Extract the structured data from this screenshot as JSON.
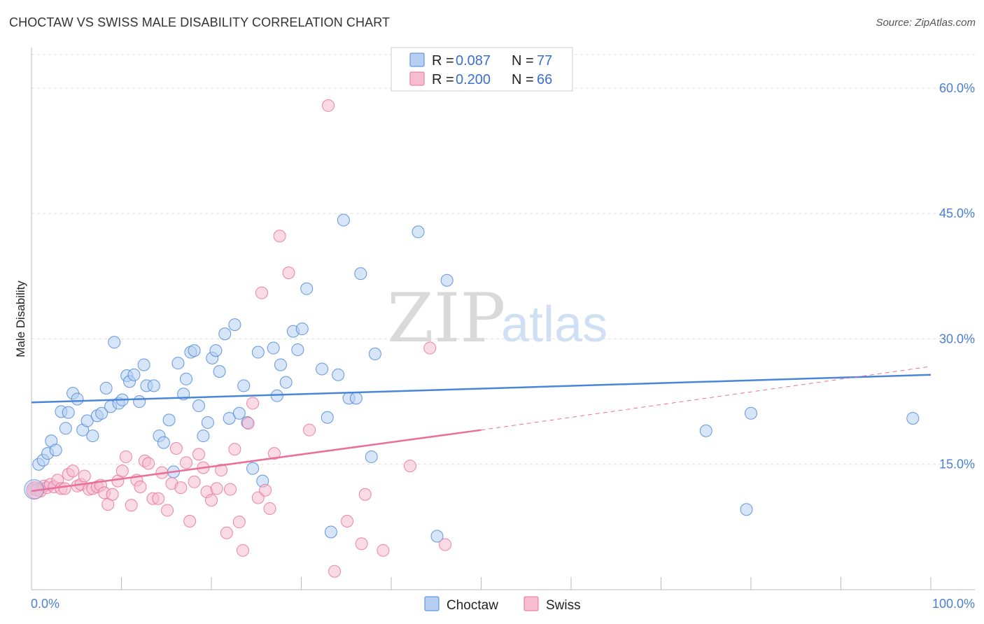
{
  "title": "CHOCTAW VS SWISS MALE DISABILITY CORRELATION CHART",
  "source": "Source: ZipAtlas.com",
  "watermark": {
    "zip": "ZIP",
    "atlas": "atlas"
  },
  "colors": {
    "choctaw": "#4a86d8",
    "choctaw_fill": "#b6cff2",
    "swiss": "#e8709a",
    "swiss_fill": "#f6bcd0",
    "grid": "#dddddd",
    "tick_label": "#4a7fd4"
  },
  "legend": {
    "r_label": "R =",
    "n_label": "N =",
    "entries": [
      {
        "series": "Choctaw",
        "r": "0.087",
        "n": "77"
      },
      {
        "series": "Swiss",
        "r": "0.200",
        "n": "66"
      }
    ]
  },
  "chart_data": {
    "type": "scatter",
    "title": "CHOCTAW VS SWISS MALE DISABILITY CORRELATION CHART",
    "xlabel": "",
    "ylabel": "Male Disability",
    "xlim": [
      0,
      100
    ],
    "ylim": [
      0,
      64
    ],
    "x_tick_labels": [
      "0.0%",
      "100.0%"
    ],
    "y_ticks": [
      15,
      30,
      45,
      60
    ],
    "y_tick_labels": [
      "15.0%",
      "30.0%",
      "45.0%",
      "60.0%"
    ],
    "series": [
      {
        "name": "Choctaw",
        "trend": {
          "x0": 0,
          "y0": 22.4,
          "x1": 100,
          "y1": 25.7
        },
        "points": [
          [
            0.5,
            12.0
          ],
          [
            0.8,
            15.0
          ],
          [
            1.3,
            15.5
          ],
          [
            1.8,
            16.3
          ],
          [
            2.2,
            17.8
          ],
          [
            2.7,
            16.7
          ],
          [
            3.3,
            21.3
          ],
          [
            3.8,
            19.3
          ],
          [
            4.1,
            21.2
          ],
          [
            4.6,
            23.5
          ],
          [
            5.1,
            22.8
          ],
          [
            5.7,
            19.1
          ],
          [
            6.2,
            20.2
          ],
          [
            6.8,
            18.4
          ],
          [
            7.3,
            20.8
          ],
          [
            7.8,
            21.1
          ],
          [
            8.3,
            24.1
          ],
          [
            8.8,
            21.9
          ],
          [
            9.2,
            29.6
          ],
          [
            9.7,
            22.3
          ],
          [
            10.1,
            22.7
          ],
          [
            10.6,
            25.6
          ],
          [
            10.9,
            24.9
          ],
          [
            11.4,
            25.7
          ],
          [
            12.0,
            22.5
          ],
          [
            12.5,
            26.9
          ],
          [
            12.8,
            24.4
          ],
          [
            13.6,
            24.4
          ],
          [
            14.2,
            18.4
          ],
          [
            14.7,
            17.6
          ],
          [
            15.3,
            20.3
          ],
          [
            15.8,
            14.1
          ],
          [
            16.3,
            27.1
          ],
          [
            16.9,
            23.4
          ],
          [
            17.2,
            25.2
          ],
          [
            17.7,
            28.4
          ],
          [
            18.1,
            28.6
          ],
          [
            18.6,
            22.0
          ],
          [
            19.1,
            18.4
          ],
          [
            19.6,
            20.0
          ],
          [
            20.1,
            27.7
          ],
          [
            20.5,
            28.6
          ],
          [
            20.9,
            26.1
          ],
          [
            21.5,
            30.6
          ],
          [
            22.0,
            20.5
          ],
          [
            22.6,
            31.7
          ],
          [
            23.1,
            21.1
          ],
          [
            23.6,
            24.4
          ],
          [
            24.0,
            20.0
          ],
          [
            24.6,
            14.5
          ],
          [
            25.2,
            28.4
          ],
          [
            25.7,
            13.0
          ],
          [
            26.9,
            28.9
          ],
          [
            27.3,
            23.2
          ],
          [
            27.7,
            26.9
          ],
          [
            28.3,
            24.8
          ],
          [
            29.1,
            30.9
          ],
          [
            29.6,
            28.7
          ],
          [
            30.1,
            31.2
          ],
          [
            30.6,
            36.0
          ],
          [
            32.3,
            26.4
          ],
          [
            32.9,
            20.6
          ],
          [
            33.3,
            6.9
          ],
          [
            34.1,
            25.7
          ],
          [
            34.7,
            44.2
          ],
          [
            35.3,
            22.9
          ],
          [
            36.1,
            22.9
          ],
          [
            36.6,
            37.8
          ],
          [
            37.8,
            15.9
          ],
          [
            38.2,
            28.2
          ],
          [
            43.0,
            42.8
          ],
          [
            45.1,
            6.4
          ],
          [
            46.2,
            37.0
          ],
          [
            75.0,
            19.0
          ],
          [
            79.5,
            9.6
          ],
          [
            80.0,
            21.1
          ],
          [
            98.0,
            20.5
          ]
        ]
      },
      {
        "name": "Swiss",
        "trend": {
          "x0": 0,
          "y0": 11.8,
          "x1": 50,
          "y1": 19.1
        },
        "trend_extension": {
          "x0": 50,
          "y0": 19.1,
          "x1": 100,
          "y1": 26.7
        },
        "points": [
          [
            0.3,
            12.0
          ],
          [
            0.6,
            11.9
          ],
          [
            1.0,
            11.8
          ],
          [
            1.4,
            12.4
          ],
          [
            1.7,
            12.2
          ],
          [
            2.1,
            12.6
          ],
          [
            2.5,
            12.3
          ],
          [
            2.9,
            13.1
          ],
          [
            3.3,
            12.1
          ],
          [
            3.7,
            12.1
          ],
          [
            4.1,
            13.8
          ],
          [
            4.6,
            14.2
          ],
          [
            5.1,
            12.4
          ],
          [
            5.5,
            12.6
          ],
          [
            5.9,
            13.6
          ],
          [
            6.4,
            12.0
          ],
          [
            6.8,
            12.1
          ],
          [
            7.3,
            12.3
          ],
          [
            7.7,
            12.5
          ],
          [
            8.1,
            11.6
          ],
          [
            8.5,
            10.2
          ],
          [
            9.0,
            11.4
          ],
          [
            9.6,
            13.0
          ],
          [
            10.1,
            14.2
          ],
          [
            10.5,
            15.9
          ],
          [
            11.1,
            10.1
          ],
          [
            11.7,
            13.1
          ],
          [
            12.1,
            12.3
          ],
          [
            12.6,
            15.4
          ],
          [
            13.0,
            15.1
          ],
          [
            13.5,
            10.9
          ],
          [
            14.1,
            10.9
          ],
          [
            14.5,
            14.0
          ],
          [
            15.1,
            9.5
          ],
          [
            15.6,
            12.7
          ],
          [
            16.1,
            16.9
          ],
          [
            16.6,
            12.2
          ],
          [
            17.2,
            15.2
          ],
          [
            17.6,
            8.2
          ],
          [
            18.1,
            12.9
          ],
          [
            18.6,
            16.2
          ],
          [
            19.1,
            14.6
          ],
          [
            19.5,
            11.7
          ],
          [
            20.0,
            10.7
          ],
          [
            20.6,
            12.1
          ],
          [
            21.1,
            14.3
          ],
          [
            21.7,
            6.8
          ],
          [
            22.1,
            12.0
          ],
          [
            22.6,
            16.8
          ],
          [
            23.1,
            8.1
          ],
          [
            23.5,
            4.7
          ],
          [
            24.1,
            19.9
          ],
          [
            24.6,
            22.3
          ],
          [
            25.2,
            11.0
          ],
          [
            25.6,
            35.5
          ],
          [
            26.0,
            11.9
          ],
          [
            26.5,
            9.7
          ],
          [
            27.0,
            16.3
          ],
          [
            27.6,
            42.3
          ],
          [
            28.6,
            37.9
          ],
          [
            30.9,
            19.1
          ],
          [
            33.7,
            2.2
          ],
          [
            35.1,
            8.2
          ],
          [
            36.7,
            5.5
          ],
          [
            37.1,
            11.4
          ],
          [
            39.1,
            4.7
          ]
        ]
      }
    ],
    "extra_swiss_points": [
      [
        33.0,
        57.9
      ],
      [
        42.1,
        14.8
      ],
      [
        44.3,
        28.9
      ],
      [
        46.0,
        5.4
      ]
    ]
  },
  "bottom_legend": [
    {
      "label": "Choctaw"
    },
    {
      "label": "Swiss"
    }
  ]
}
